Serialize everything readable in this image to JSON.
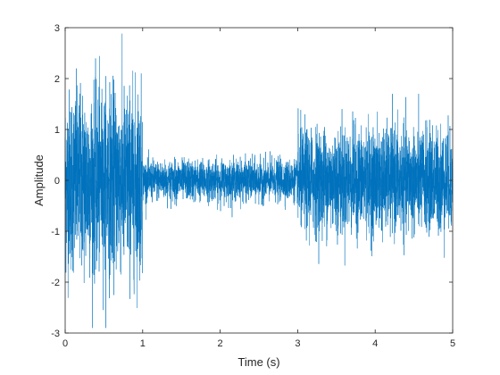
{
  "chart_data": {
    "type": "line",
    "title": "",
    "xlabel": "Time (s)",
    "ylabel": "Amplitude",
    "xlim": [
      0,
      5
    ],
    "ylim": [
      -3,
      3
    ],
    "xticks": [
      "0",
      "1",
      "2",
      "3",
      "4",
      "5"
    ],
    "yticks": [
      "-3",
      "-2",
      "-1",
      "0",
      "1",
      "2",
      "3"
    ],
    "grid": false,
    "legend": "none",
    "series": [
      {
        "color": "#0072bd",
        "segments": [
          {
            "t_start": 0.0,
            "t_end": 1.0,
            "typical_amplitude": 1.6,
            "peak_max": 2.9,
            "peak_min": -2.9
          },
          {
            "t_start": 1.0,
            "t_end": 3.0,
            "typical_amplitude": 0.35,
            "peak_max": 0.85,
            "peak_min": -0.8
          },
          {
            "t_start": 3.0,
            "t_end": 5.0,
            "typical_amplitude": 0.9,
            "peak_max": 1.7,
            "peak_min": -1.75
          }
        ]
      }
    ]
  },
  "colors": {
    "line": "#0072bd",
    "axes": "#262626"
  }
}
